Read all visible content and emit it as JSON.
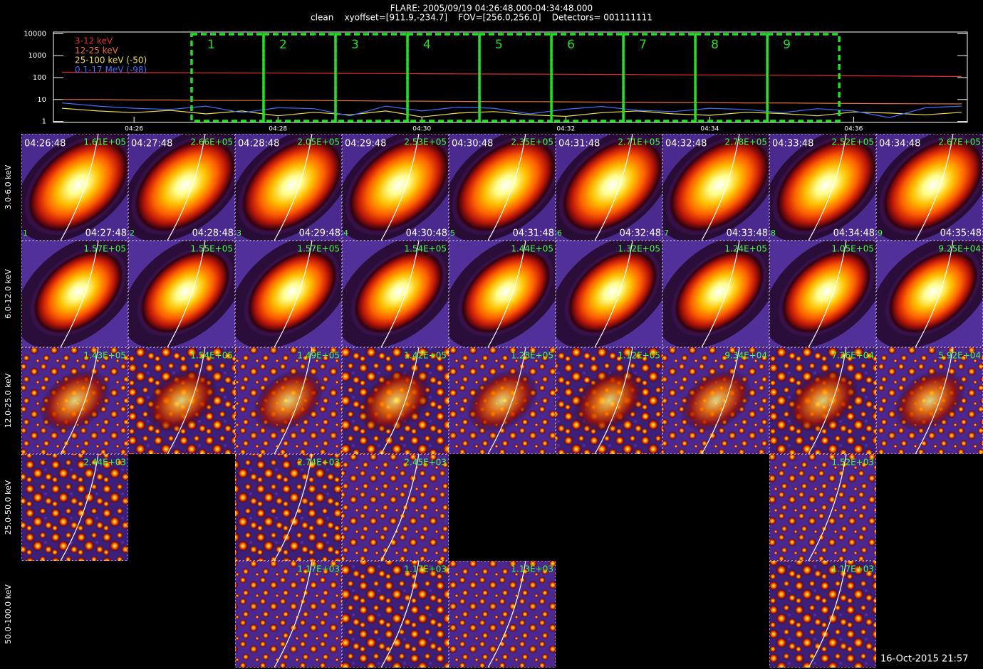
{
  "header": {
    "title": "FLARE: 2005/09/19 04:26:48.000-04:34:48.000",
    "subtitle": "clean    xyoffset=[911.9,-234.7]    FOV=[256.0,256.0]    Detectors= 001111111"
  },
  "chart_data": {
    "type": "line",
    "xlim": [
      24.88,
      37.58
    ],
    "ylim": [
      0.9,
      12000
    ],
    "y_log": true,
    "xticks": [
      {
        "value": 26,
        "label": "04:26"
      },
      {
        "value": 28,
        "label": "04:28"
      },
      {
        "value": 30,
        "label": "04:30"
      },
      {
        "value": 32,
        "label": "04:32"
      },
      {
        "value": 34,
        "label": "04:34"
      },
      {
        "value": 36,
        "label": "04:36"
      }
    ],
    "yticks": [
      1,
      10,
      100,
      1000,
      10000
    ],
    "x": [
      25,
      25.5,
      26,
      26.5,
      27,
      27.5,
      28,
      28.5,
      29,
      29.5,
      30,
      30.5,
      31,
      31.5,
      32,
      32.5,
      33,
      33.5,
      34,
      34.5,
      35,
      35.5,
      36,
      36.5,
      37,
      37.5
    ],
    "series": [
      {
        "name": "3-12 keV",
        "color": "#e52a2a",
        "values": [
          175,
          172,
          170,
          168,
          165,
          163,
          160,
          158,
          156,
          153,
          150,
          148,
          146,
          144,
          142,
          140,
          137,
          134,
          132,
          130,
          127,
          124,
          121,
          118,
          115,
          112
        ]
      },
      {
        "name": "12-25 keV",
        "color": "#f07030",
        "values": [
          10,
          10,
          9.5,
          9.5,
          9,
          9,
          9.2,
          9,
          8.8,
          8.5,
          8.4,
          8.2,
          8,
          8,
          7.8,
          7.6,
          7.5,
          7.3,
          7.2,
          7,
          7,
          6.8,
          6.6,
          6.5,
          6.4,
          6.3
        ]
      },
      {
        "name": "25-100 keV (-50)",
        "color": "#f0e040",
        "values": [
          4,
          3,
          2.5,
          3.2,
          2.2,
          3,
          1.8,
          2.6,
          2,
          3,
          1.6,
          2.4,
          2.8,
          2,
          1.7,
          2.5,
          3,
          2.2,
          1.9,
          2.6,
          2.3,
          1.8,
          2.7,
          2.4,
          2,
          2.6
        ]
      },
      {
        "name": "0.1-17 MeV (-98)",
        "color": "#3a70ff",
        "values": [
          7,
          5,
          4,
          3.5,
          5,
          2.5,
          4.2,
          3.8,
          1.8,
          5,
          3,
          4.5,
          4,
          2.2,
          3.6,
          4.8,
          3.2,
          2.8,
          4,
          3.5,
          2.5,
          3.8,
          3,
          1.5,
          4.2,
          5
        ]
      }
    ],
    "intervals": [
      {
        "label": "1",
        "start": 26.8,
        "end": 27.8
      },
      {
        "label": "2",
        "start": 27.8,
        "end": 28.8
      },
      {
        "label": "3",
        "start": 28.8,
        "end": 29.8
      },
      {
        "label": "4",
        "start": 29.8,
        "end": 30.8
      },
      {
        "label": "5",
        "start": 30.8,
        "end": 31.8
      },
      {
        "label": "6",
        "start": 31.8,
        "end": 32.8
      },
      {
        "label": "7",
        "start": 32.8,
        "end": 33.8
      },
      {
        "label": "8",
        "start": 33.8,
        "end": 34.8
      },
      {
        "label": "9",
        "start": 34.8,
        "end": 35.8
      }
    ]
  },
  "images": {
    "rows": [
      {
        "label": "3.0-6.0 keV",
        "cells": [
          {
            "start": "04:26:48",
            "max": "1.61E+05",
            "index": "1",
            "end": "04:27:48"
          },
          {
            "start": "04:27:48",
            "max": "2.66E+05",
            "index": "2",
            "end": "04:28:48"
          },
          {
            "start": "04:28:48",
            "max": "2.05E+05",
            "index": "3",
            "end": "04:29:48"
          },
          {
            "start": "04:29:48",
            "max": "2.53E+05",
            "index": "4",
            "end": "04:30:48"
          },
          {
            "start": "04:30:48",
            "max": "2.35E+05",
            "index": "5",
            "end": "04:31:48"
          },
          {
            "start": "04:31:48",
            "max": "2.71E+05",
            "index": "6",
            "end": "04:32:48"
          },
          {
            "start": "04:32:48",
            "max": "2.78E+05",
            "index": "7",
            "end": "04:33:48"
          },
          {
            "start": "04:33:48",
            "max": "2.52E+05",
            "index": "8",
            "end": "04:34:48"
          },
          {
            "start": "04:34:48",
            "max": "2.67E+05",
            "index": "9",
            "end": "04:35:48"
          }
        ]
      },
      {
        "label": "6.0-12.0 keV",
        "cells": [
          {
            "max": "1.57E+05"
          },
          {
            "max": "1.55E+05"
          },
          {
            "max": "1.57E+05"
          },
          {
            "max": "1.54E+05"
          },
          {
            "max": "1.44E+05"
          },
          {
            "max": "1.32E+05"
          },
          {
            "max": "1.24E+05"
          },
          {
            "max": "1.05E+05"
          },
          {
            "max": "9.25E+04"
          }
        ]
      },
      {
        "label": "12.0-25.0 keV",
        "cells": [
          {
            "max": "1.43E+05"
          },
          {
            "max": "1.54E+05"
          },
          {
            "max": "1.49E+05"
          },
          {
            "max": "1.42E+05"
          },
          {
            "max": "1.28E+05"
          },
          {
            "max": "1.12E+05"
          },
          {
            "max": "9.34E+04"
          },
          {
            "max": "7.26E+04"
          },
          {
            "max": "5.92E+04"
          }
        ]
      },
      {
        "label": "25.0-50.0 keV",
        "cells": [
          {
            "max": "2.44E+03"
          },
          null,
          {
            "max": "2.74E+03"
          },
          {
            "max": "2.45E+03"
          },
          null,
          null,
          null,
          {
            "max": "1.52E+03"
          },
          null
        ]
      },
      {
        "label": "50.0-100.0 keV",
        "cells": [
          null,
          null,
          {
            "max": "1.17E+03"
          },
          {
            "max": "1.17E+03"
          },
          {
            "max": "1.13E+03"
          },
          null,
          null,
          {
            "max": "1.17E+03"
          },
          null
        ]
      }
    ]
  },
  "footer": "16-Oct-2015 21:57"
}
